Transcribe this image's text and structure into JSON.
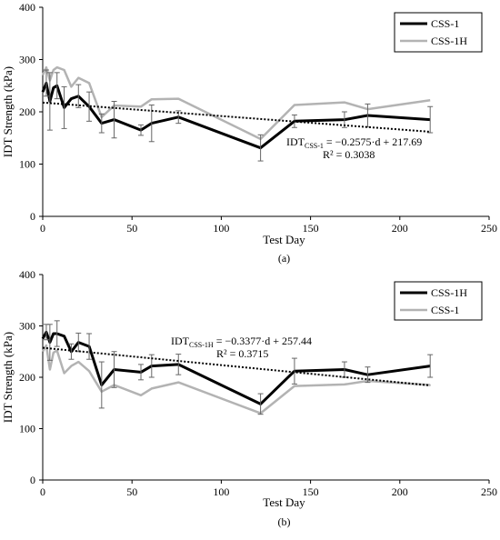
{
  "chart_data": [
    {
      "type": "line",
      "panel_label": "(a)",
      "xlabel": "Test Day",
      "ylabel": "IDT Strength (kPa)",
      "xlim": [
        0,
        250
      ],
      "ylim": [
        0,
        400
      ],
      "xticks": [
        0,
        50,
        100,
        150,
        200,
        250
      ],
      "yticks": [
        0,
        100,
        200,
        300,
        400
      ],
      "legend_position": "top-right",
      "series": [
        {
          "name": "CSS-1",
          "color": "#000000",
          "x": [
            0,
            2,
            4,
            6,
            8,
            12,
            16,
            20,
            26,
            33,
            40,
            55,
            61,
            76,
            122,
            141,
            169,
            182,
            217
          ],
          "y": [
            238,
            255,
            220,
            246,
            250,
            208,
            225,
            230,
            210,
            178,
            185,
            165,
            178,
            190,
            131,
            182,
            185,
            193,
            185
          ]
        },
        {
          "name": "CSS-1H",
          "color": "#b3b3b3",
          "x": [
            0,
            2,
            4,
            6,
            8,
            12,
            16,
            20,
            26,
            33,
            40,
            55,
            61,
            76,
            122,
            141,
            169,
            182,
            217
          ],
          "y": [
            270,
            285,
            260,
            280,
            285,
            280,
            248,
            265,
            255,
            190,
            212,
            210,
            224,
            225,
            148,
            213,
            218,
            205,
            222
          ]
        }
      ],
      "error_bars": {
        "series": "CSS-1",
        "x": [
          2,
          4,
          8,
          12,
          20,
          26,
          33,
          40,
          55,
          61,
          76,
          122,
          141,
          169,
          182,
          217
        ],
        "y": [
          255,
          220,
          250,
          208,
          230,
          210,
          178,
          185,
          165,
          178,
          190,
          131,
          182,
          185,
          193,
          185
        ],
        "err": [
          25,
          55,
          25,
          40,
          22,
          28,
          18,
          35,
          10,
          35,
          12,
          25,
          12,
          15,
          22,
          25
        ]
      },
      "trendline": {
        "x": [
          0,
          217
        ],
        "y": [
          217.69,
          161.81
        ]
      },
      "annotation": {
        "main": "IDT",
        "sub": "CSS-1",
        "rest": " = −0.2575·d + 217.69",
        "r2": "R² = 0.3038"
      }
    },
    {
      "type": "line",
      "panel_label": "(b)",
      "xlabel": "Test Day",
      "ylabel": "IDT Strength (kPa)",
      "xlim": [
        0,
        250
      ],
      "ylim": [
        0,
        400
      ],
      "xticks": [
        0,
        50,
        100,
        150,
        200,
        250
      ],
      "yticks": [
        0,
        100,
        200,
        300,
        400
      ],
      "legend_position": "top-right",
      "series": [
        {
          "name": "CSS-1H",
          "color": "#000000",
          "x": [
            0,
            2,
            4,
            6,
            8,
            12,
            16,
            20,
            26,
            33,
            40,
            55,
            61,
            76,
            122,
            141,
            169,
            182,
            217
          ],
          "y": [
            275,
            288,
            268,
            285,
            285,
            280,
            250,
            268,
            260,
            185,
            215,
            210,
            222,
            225,
            148,
            212,
            215,
            205,
            222
          ]
        },
        {
          "name": "CSS-1",
          "color": "#b3b3b3",
          "x": [
            0,
            2,
            4,
            6,
            8,
            12,
            16,
            20,
            26,
            33,
            40,
            55,
            61,
            76,
            122,
            141,
            169,
            182,
            217
          ],
          "y": [
            250,
            262,
            215,
            248,
            252,
            208,
            222,
            230,
            212,
            172,
            185,
            165,
            178,
            190,
            130,
            183,
            186,
            193,
            185
          ]
        }
      ],
      "error_bars": {
        "series": "CSS-1H",
        "x": [
          2,
          4,
          8,
          16,
          20,
          26,
          33,
          40,
          55,
          61,
          76,
          122,
          141,
          169,
          182,
          217
        ],
        "y": [
          288,
          268,
          285,
          250,
          268,
          260,
          185,
          215,
          210,
          222,
          225,
          148,
          212,
          215,
          205,
          222
        ],
        "err": [
          15,
          35,
          25,
          15,
          18,
          25,
          45,
          35,
          15,
          22,
          20,
          20,
          25,
          15,
          15,
          22
        ]
      },
      "trendline": {
        "x": [
          0,
          217
        ],
        "y": [
          257.44,
          184.16
        ]
      },
      "annotation": {
        "main": "IDT",
        "sub": "CSS-1H",
        "rest": " = −0.3377·d + 257.44",
        "r2": "R² = 0.3715"
      }
    }
  ]
}
